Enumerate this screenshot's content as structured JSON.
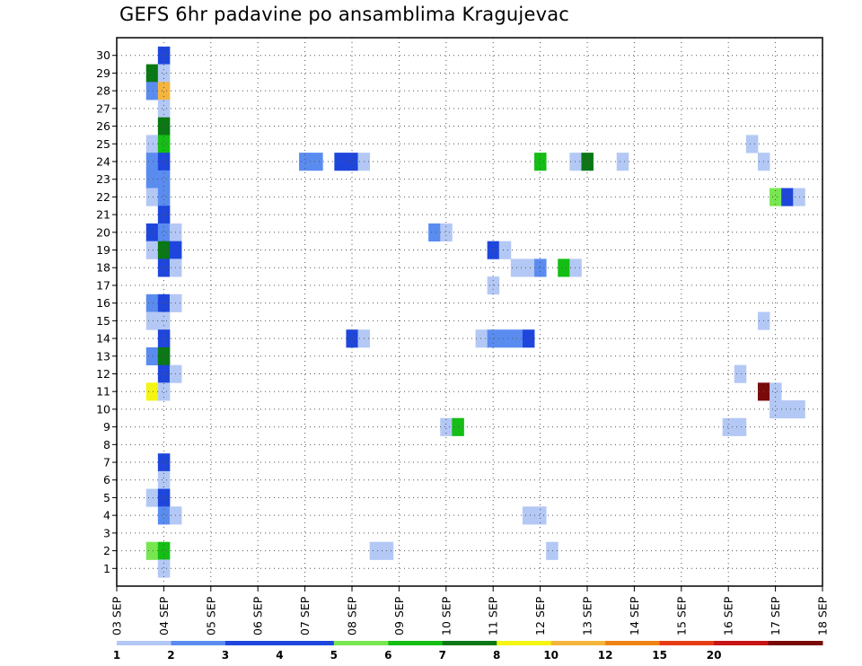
{
  "title": "GEFS 6hr padavine po ansamblima Kragujevac",
  "chart_data": {
    "type": "heatmap",
    "title": "GEFS 6hr padavine po ansamblima Kragujevac",
    "xlabel": "",
    "ylabel": "",
    "x_ticks": [
      "03 SEP",
      "04 SEP",
      "05 SEP",
      "06 SEP",
      "07 SEP",
      "08 SEP",
      "09 SEP",
      "10 SEP",
      "11 SEP",
      "12 SEP",
      "13 SEP",
      "14 SEP",
      "15 SEP",
      "16 SEP",
      "17 SEP",
      "18 SEP"
    ],
    "y_ticks": [
      1,
      2,
      3,
      4,
      5,
      6,
      7,
      8,
      9,
      10,
      11,
      12,
      13,
      14,
      15,
      16,
      17,
      18,
      19,
      20,
      21,
      22,
      23,
      24,
      25,
      26,
      27,
      28,
      29,
      30
    ],
    "x_range": [
      0,
      15
    ],
    "y_range": [
      0,
      31
    ],
    "grid": true,
    "colorbar": {
      "labels": [
        "1",
        "2",
        "3",
        "4",
        "5",
        "6",
        "7",
        "8",
        "10",
        "12",
        "15",
        "20"
      ],
      "colors": [
        "#b4c8f5",
        "#5a8cf0",
        "#1e46dc",
        "#1e46dc",
        "#78e650",
        "#14be14",
        "#0a7814",
        "#f5f514",
        "#f5b43c",
        "#f08214",
        "#e63c14",
        "#c81414",
        "#780a0a"
      ]
    },
    "cells_note": "Each cell: x = day offset from 03 SEP 00h (6-hour steps), ensemble member y, color class c (index into colorbar.colors).",
    "cells": [
      {
        "x": 1.0,
        "y": 30,
        "c": 2
      },
      {
        "x": 0.75,
        "y": 29,
        "c": 6
      },
      {
        "x": 1.0,
        "y": 29,
        "c": 0
      },
      {
        "x": 0.75,
        "y": 28,
        "c": 1
      },
      {
        "x": 1.0,
        "y": 28,
        "c": 8
      },
      {
        "x": 1.0,
        "y": 27,
        "c": 0
      },
      {
        "x": 1.0,
        "y": 26,
        "c": 6
      },
      {
        "x": 0.75,
        "y": 25,
        "c": 0
      },
      {
        "x": 1.0,
        "y": 25,
        "c": 5
      },
      {
        "x": 0.75,
        "y": 24,
        "c": 1
      },
      {
        "x": 1.0,
        "y": 24,
        "c": 2
      },
      {
        "x": 4.0,
        "y": 24,
        "c": 1
      },
      {
        "x": 4.25,
        "y": 24,
        "c": 1
      },
      {
        "x": 4.75,
        "y": 24,
        "c": 2
      },
      {
        "x": 5.0,
        "y": 24,
        "c": 2
      },
      {
        "x": 5.25,
        "y": 24,
        "c": 0
      },
      {
        "x": 9.0,
        "y": 24,
        "c": 5
      },
      {
        "x": 9.75,
        "y": 24,
        "c": 0
      },
      {
        "x": 10.0,
        "y": 24,
        "c": 6
      },
      {
        "x": 10.75,
        "y": 24,
        "c": 0
      },
      {
        "x": 13.75,
        "y": 24,
        "c": 0
      },
      {
        "x": 0.75,
        "y": 23,
        "c": 1
      },
      {
        "x": 1.0,
        "y": 23,
        "c": 1
      },
      {
        "x": 13.5,
        "y": 25,
        "c": 0
      },
      {
        "x": 0.75,
        "y": 22,
        "c": 0
      },
      {
        "x": 1.0,
        "y": 22,
        "c": 1
      },
      {
        "x": 14.0,
        "y": 22,
        "c": 4
      },
      {
        "x": 14.25,
        "y": 22,
        "c": 2
      },
      {
        "x": 14.5,
        "y": 22,
        "c": 0
      },
      {
        "x": 1.0,
        "y": 21,
        "c": 2
      },
      {
        "x": 0.75,
        "y": 20,
        "c": 2
      },
      {
        "x": 1.0,
        "y": 20,
        "c": 1
      },
      {
        "x": 1.25,
        "y": 20,
        "c": 0
      },
      {
        "x": 6.75,
        "y": 20,
        "c": 1
      },
      {
        "x": 7.0,
        "y": 20,
        "c": 0
      },
      {
        "x": 0.75,
        "y": 19,
        "c": 0
      },
      {
        "x": 1.0,
        "y": 19,
        "c": 6
      },
      {
        "x": 1.25,
        "y": 19,
        "c": 2
      },
      {
        "x": 8.0,
        "y": 19,
        "c": 2
      },
      {
        "x": 8.25,
        "y": 19,
        "c": 0
      },
      {
        "x": 1.0,
        "y": 18,
        "c": 2
      },
      {
        "x": 1.25,
        "y": 18,
        "c": 0
      },
      {
        "x": 8.5,
        "y": 18,
        "c": 0
      },
      {
        "x": 8.75,
        "y": 18,
        "c": 0
      },
      {
        "x": 9.0,
        "y": 18,
        "c": 1
      },
      {
        "x": 9.5,
        "y": 18,
        "c": 5
      },
      {
        "x": 9.75,
        "y": 18,
        "c": 0
      },
      {
        "x": 8.0,
        "y": 17,
        "c": 0
      },
      {
        "x": 0.75,
        "y": 16,
        "c": 1
      },
      {
        "x": 1.0,
        "y": 16,
        "c": 2
      },
      {
        "x": 1.25,
        "y": 16,
        "c": 0
      },
      {
        "x": 0.75,
        "y": 15,
        "c": 0
      },
      {
        "x": 1.0,
        "y": 15,
        "c": 0
      },
      {
        "x": 13.75,
        "y": 15,
        "c": 0
      },
      {
        "x": 1.0,
        "y": 14,
        "c": 2
      },
      {
        "x": 5.0,
        "y": 14,
        "c": 2
      },
      {
        "x": 5.25,
        "y": 14,
        "c": 0
      },
      {
        "x": 7.75,
        "y": 14,
        "c": 0
      },
      {
        "x": 8.0,
        "y": 14,
        "c": 1
      },
      {
        "x": 8.25,
        "y": 14,
        "c": 1
      },
      {
        "x": 8.5,
        "y": 14,
        "c": 1
      },
      {
        "x": 8.75,
        "y": 14,
        "c": 2
      },
      {
        "x": 0.75,
        "y": 13,
        "c": 1
      },
      {
        "x": 1.0,
        "y": 13,
        "c": 6
      },
      {
        "x": 1.0,
        "y": 12,
        "c": 2
      },
      {
        "x": 1.25,
        "y": 12,
        "c": 0
      },
      {
        "x": 13.25,
        "y": 12,
        "c": 0
      },
      {
        "x": 0.75,
        "y": 11,
        "c": 7
      },
      {
        "x": 1.0,
        "y": 11,
        "c": 0
      },
      {
        "x": 13.75,
        "y": 11,
        "c": 12
      },
      {
        "x": 14.0,
        "y": 11,
        "c": 0
      },
      {
        "x": 14.0,
        "y": 10,
        "c": 0
      },
      {
        "x": 14.25,
        "y": 10,
        "c": 0
      },
      {
        "x": 14.5,
        "y": 10,
        "c": 0
      },
      {
        "x": 7.0,
        "y": 9,
        "c": 0
      },
      {
        "x": 7.25,
        "y": 9,
        "c": 5
      },
      {
        "x": 13.0,
        "y": 9,
        "c": 0
      },
      {
        "x": 13.25,
        "y": 9,
        "c": 0
      },
      {
        "x": 1.0,
        "y": 7,
        "c": 2
      },
      {
        "x": 1.0,
        "y": 6,
        "c": 0
      },
      {
        "x": 0.75,
        "y": 5,
        "c": 0
      },
      {
        "x": 1.0,
        "y": 5,
        "c": 2
      },
      {
        "x": 1.0,
        "y": 4,
        "c": 1
      },
      {
        "x": 1.25,
        "y": 4,
        "c": 0
      },
      {
        "x": 8.75,
        "y": 4,
        "c": 0
      },
      {
        "x": 9.0,
        "y": 4,
        "c": 0
      },
      {
        "x": 0.75,
        "y": 2,
        "c": 4
      },
      {
        "x": 1.0,
        "y": 2,
        "c": 5
      },
      {
        "x": 5.5,
        "y": 2,
        "c": 0
      },
      {
        "x": 5.75,
        "y": 2,
        "c": 0
      },
      {
        "x": 9.25,
        "y": 2,
        "c": 0
      },
      {
        "x": 1.0,
        "y": 1,
        "c": 0
      }
    ]
  }
}
